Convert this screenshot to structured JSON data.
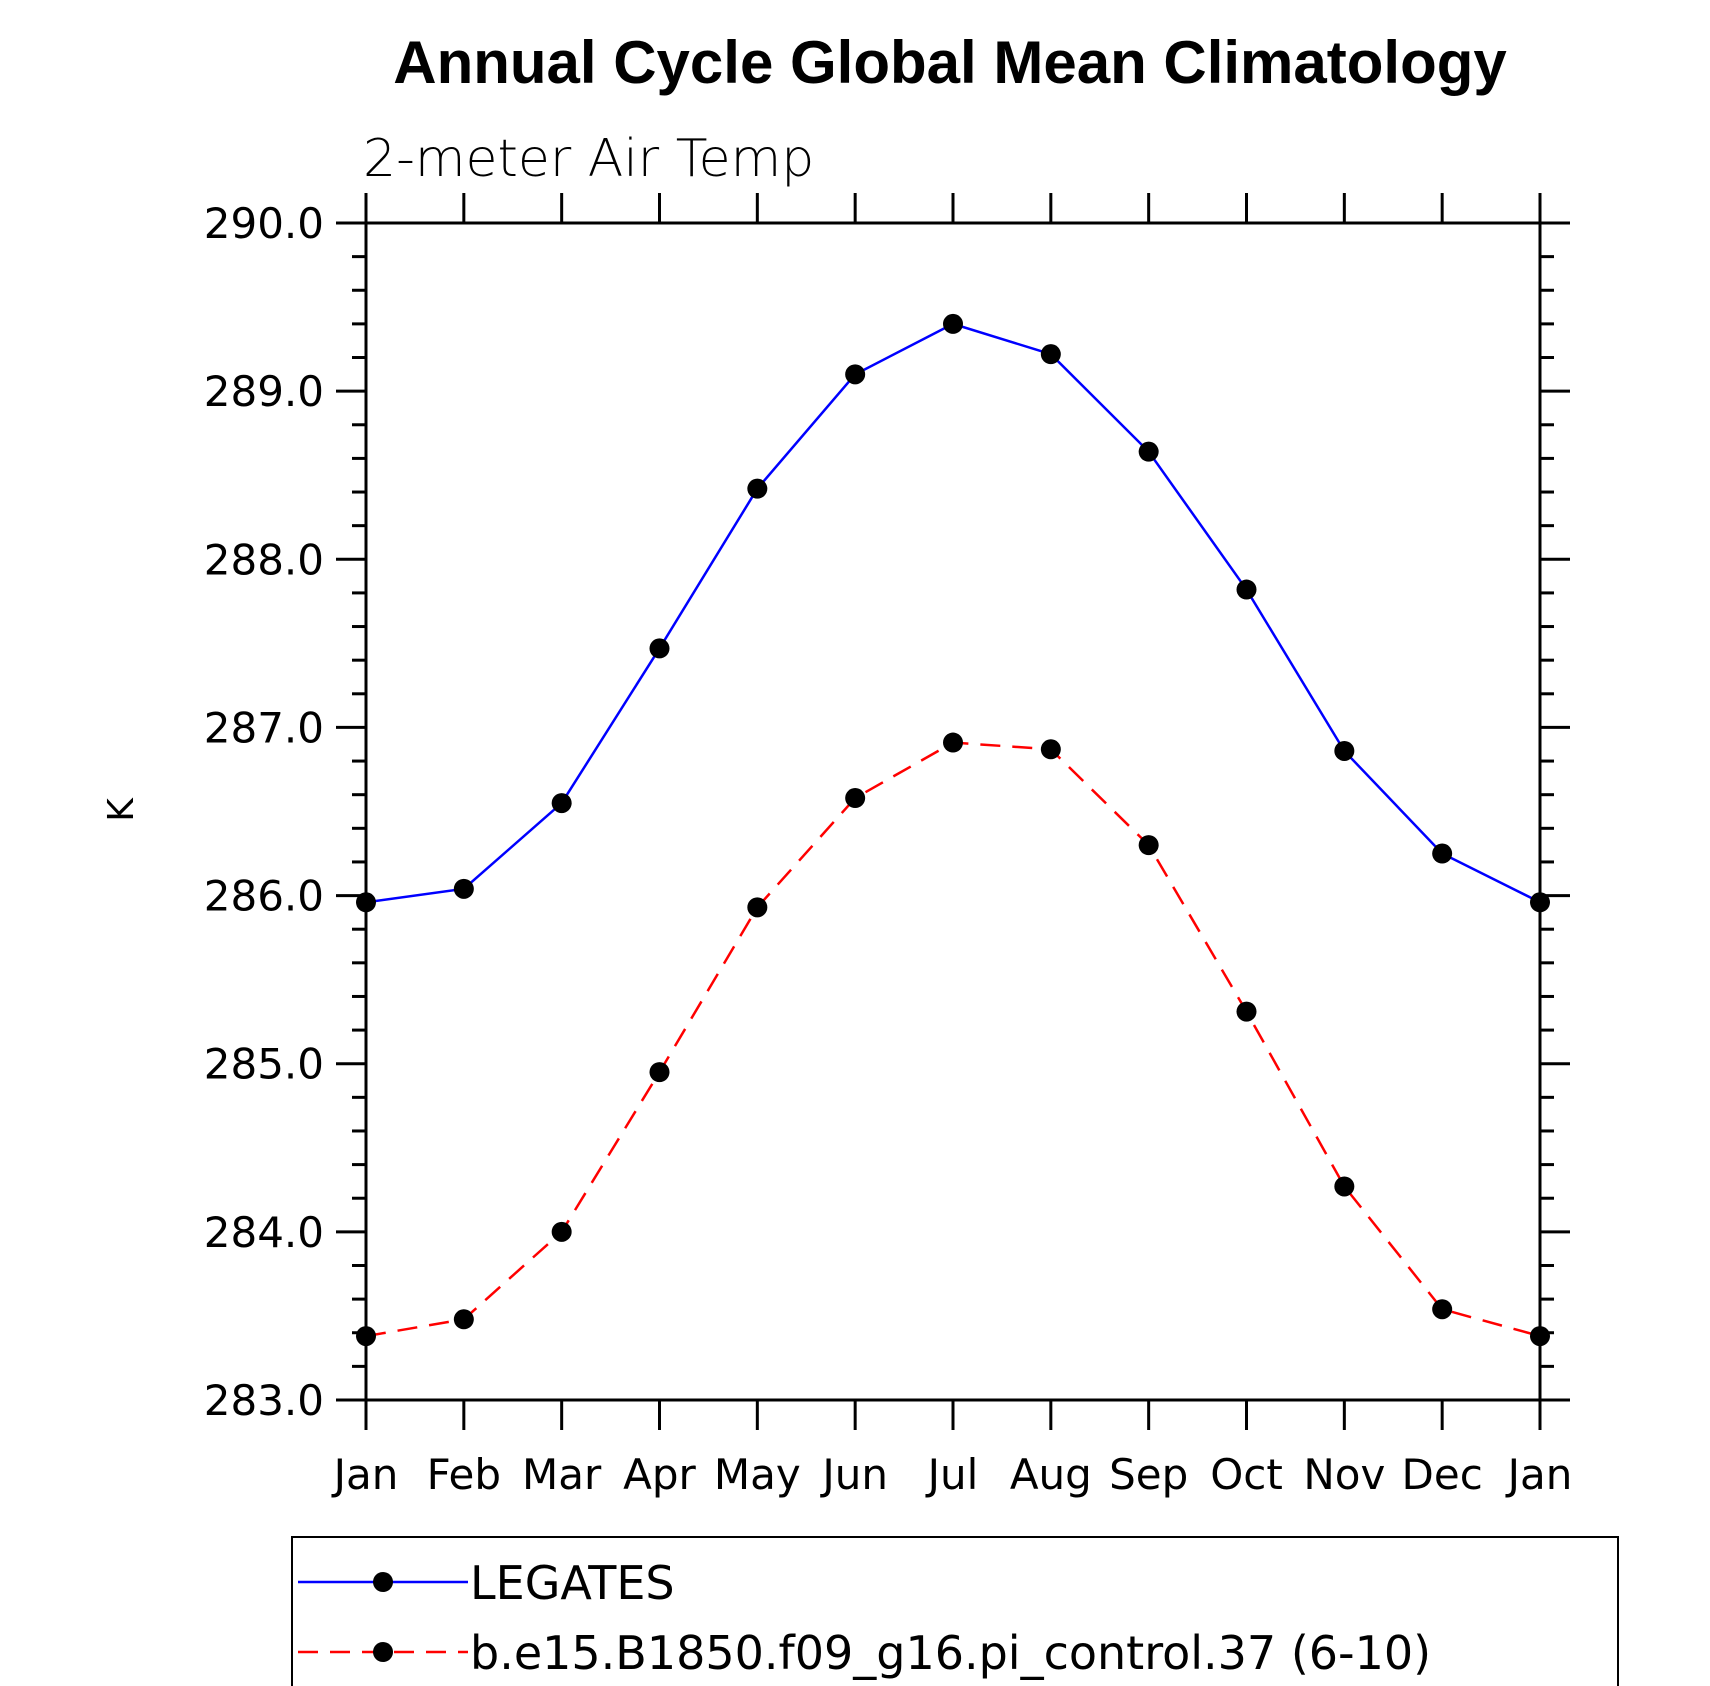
{
  "chart_data": {
    "type": "line",
    "title": "Annual Cycle Global Mean Climatology",
    "subtitle": "2-meter Air Temp",
    "xlabel": "",
    "ylabel": "K",
    "categories": [
      "Jan",
      "Feb",
      "Mar",
      "Apr",
      "May",
      "Jun",
      "Jul",
      "Aug",
      "Sep",
      "Oct",
      "Nov",
      "Dec",
      "Jan"
    ],
    "ylim": [
      283.0,
      290.0
    ],
    "yticks": [
      "283.0",
      "284.0",
      "285.0",
      "286.0",
      "287.0",
      "288.0",
      "289.0",
      "290.0"
    ],
    "grid": false,
    "legend_position": "bottom",
    "series": [
      {
        "name": "LEGATES",
        "color": "#0000ff",
        "line_style": "solid",
        "marker": "filled-circle",
        "values": [
          285.96,
          286.04,
          286.55,
          287.47,
          288.42,
          289.1,
          289.4,
          289.22,
          288.64,
          287.82,
          286.86,
          286.25,
          285.96
        ]
      },
      {
        "name": "b.e15.B1850.f09_g16.pi_control.37 (6-10)",
        "color": "#ff0000",
        "line_style": "dashed",
        "marker": "filled-circle",
        "values": [
          283.38,
          283.48,
          284.0,
          284.95,
          285.93,
          286.58,
          286.91,
          286.87,
          286.3,
          285.31,
          284.27,
          283.54,
          283.38
        ]
      }
    ]
  }
}
